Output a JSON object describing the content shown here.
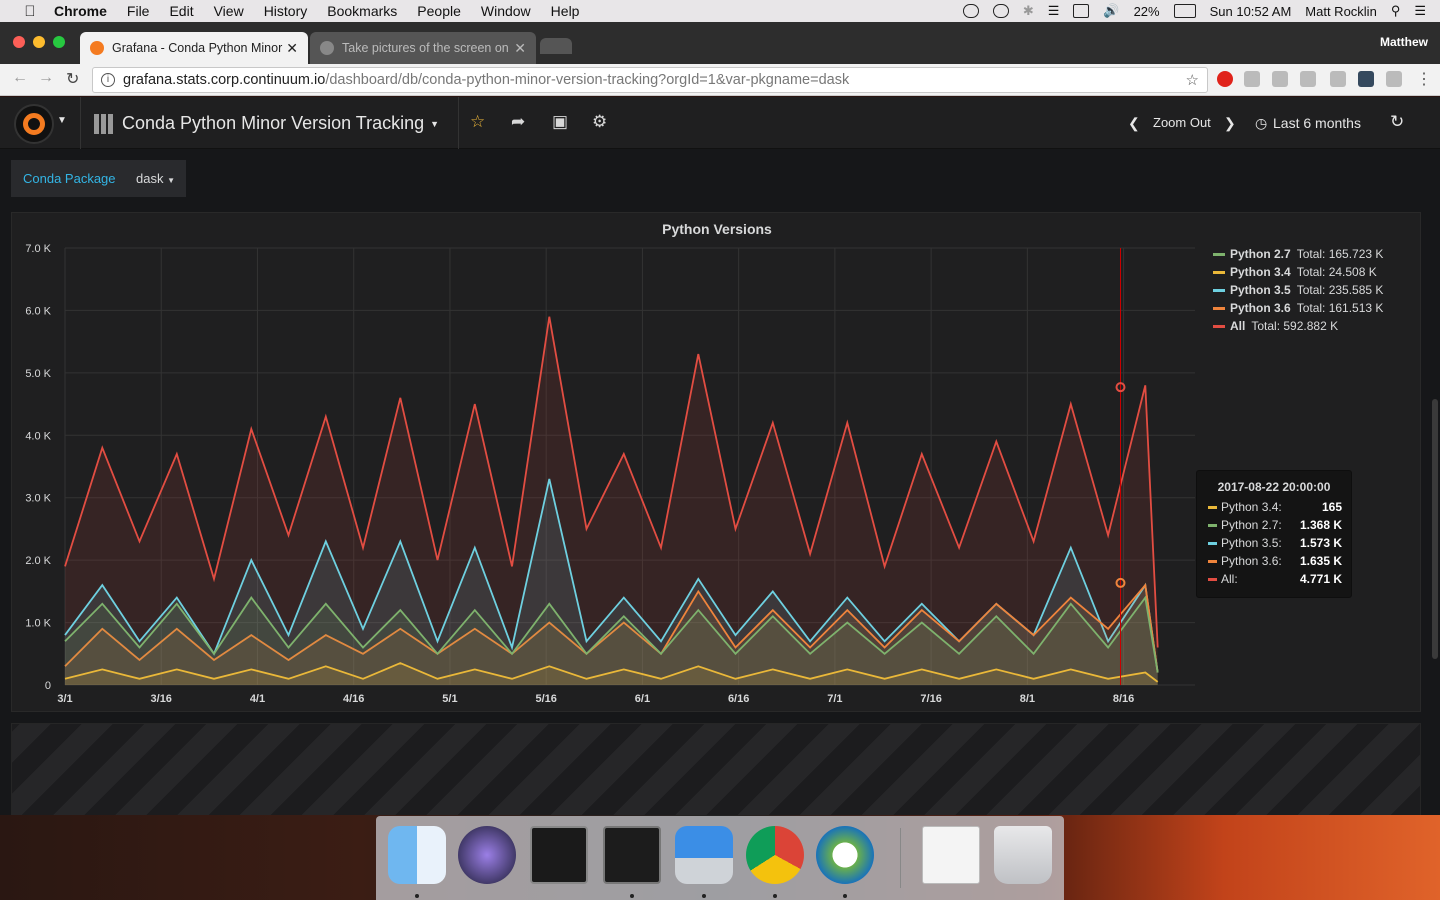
{
  "menubar": {
    "app": "Chrome",
    "items": [
      "File",
      "Edit",
      "View",
      "History",
      "Bookmarks",
      "People",
      "Window",
      "Help"
    ],
    "battery": "22%",
    "clock": "Sun 10:52 AM",
    "user": "Matt Rocklin"
  },
  "browser": {
    "tabs": [
      {
        "title": "Grafana - Conda Python Minor",
        "active": true
      },
      {
        "title": "Take pictures of the screen on",
        "active": false
      }
    ],
    "profile": "Matthew",
    "url_host": "grafana.stats.corp.continuum.io",
    "url_path": "/dashboard/db/conda-python-minor-version-tracking?orgId=1&var-pkgname=dask"
  },
  "grafana": {
    "dashboard_title": "Conda Python Minor Version Tracking",
    "zoom_out": "Zoom Out",
    "time_range": "Last 6 months",
    "variable_label": "Conda Package",
    "variable_value": "dask"
  },
  "panel": {
    "title": "Python Versions",
    "legend": [
      {
        "name": "Python 2.7",
        "total": "Total: 165.723 K",
        "color": "#7eb26d"
      },
      {
        "name": "Python 3.4",
        "total": "Total: 24.508 K",
        "color": "#eab839"
      },
      {
        "name": "Python 3.5",
        "total": "Total: 235.585 K",
        "color": "#6ed0e0"
      },
      {
        "name": "Python 3.6",
        "total": "Total: 161.513 K",
        "color": "#ef843c"
      },
      {
        "name": "All",
        "total": "Total: 592.882 K",
        "color": "#e24d42"
      }
    ],
    "tooltip": {
      "time": "2017-08-22 20:00:00",
      "rows": [
        {
          "name": "Python 3.4:",
          "value": "165",
          "color": "#eab839"
        },
        {
          "name": "Python 2.7:",
          "value": "1.368 K",
          "color": "#7eb26d"
        },
        {
          "name": "Python 3.5:",
          "value": "1.573 K",
          "color": "#6ed0e0"
        },
        {
          "name": "Python 3.6:",
          "value": "1.635 K",
          "color": "#ef843c"
        },
        {
          "name": "All:",
          "value": "4.771 K",
          "color": "#e24d42"
        }
      ]
    }
  },
  "chart_data": {
    "type": "line",
    "title": "Python Versions",
    "yticks": [
      "0",
      "1.0 K",
      "2.0 K",
      "3.0 K",
      "4.0 K",
      "5.0 K",
      "6.0 K",
      "7.0 K"
    ],
    "ylim": [
      0,
      7000
    ],
    "xticks": [
      "3/1",
      "3/16",
      "4/1",
      "4/16",
      "5/1",
      "5/16",
      "6/1",
      "6/16",
      "7/1",
      "7/16",
      "8/1",
      "8/16"
    ],
    "x": [
      0,
      6,
      12,
      18,
      24,
      30,
      36,
      42,
      48,
      54,
      60,
      66,
      72,
      78,
      84,
      90,
      96,
      102,
      108,
      114,
      120,
      126,
      132,
      138,
      144,
      150,
      156,
      162,
      168,
      174,
      176
    ],
    "grid": true,
    "legend_position": "right",
    "series": [
      {
        "name": "All",
        "color": "#e24d42",
        "values": [
          1900,
          3800,
          2300,
          3700,
          1700,
          4100,
          2400,
          4300,
          2200,
          4600,
          2000,
          4500,
          1900,
          5900,
          2500,
          3700,
          2200,
          5300,
          2500,
          4200,
          2100,
          4200,
          1900,
          3700,
          2200,
          3900,
          2300,
          4500,
          2400,
          4800,
          600
        ]
      },
      {
        "name": "Python 3.5",
        "color": "#6ed0e0",
        "values": [
          800,
          1600,
          700,
          1400,
          500,
          2000,
          800,
          2300,
          900,
          2300,
          700,
          2200,
          600,
          3300,
          700,
          1400,
          700,
          1700,
          800,
          1500,
          700,
          1400,
          700,
          1300,
          700,
          1300,
          800,
          2200,
          700,
          1600,
          200
        ]
      },
      {
        "name": "Python 3.6",
        "color": "#ef843c",
        "values": [
          300,
          900,
          400,
          900,
          400,
          800,
          400,
          800,
          500,
          900,
          500,
          900,
          500,
          1000,
          500,
          1000,
          500,
          1500,
          600,
          1200,
          600,
          1200,
          600,
          1200,
          700,
          1300,
          800,
          1400,
          900,
          1600,
          200
        ]
      },
      {
        "name": "Python 2.7",
        "color": "#7eb26d",
        "values": [
          700,
          1300,
          600,
          1300,
          500,
          1400,
          600,
          1300,
          600,
          1200,
          500,
          1200,
          500,
          1300,
          500,
          1100,
          500,
          1200,
          500,
          1100,
          500,
          1000,
          500,
          1000,
          500,
          1100,
          500,
          1300,
          600,
          1400,
          200
        ]
      },
      {
        "name": "Python 3.4",
        "color": "#eab839",
        "values": [
          100,
          250,
          100,
          250,
          100,
          250,
          100,
          300,
          100,
          350,
          100,
          250,
          100,
          300,
          100,
          250,
          100,
          300,
          100,
          250,
          100,
          250,
          100,
          250,
          100,
          250,
          100,
          250,
          100,
          200,
          50
        ]
      }
    ]
  },
  "dock": {
    "apps": [
      "finder-icon",
      "siri-icon",
      "terminal-icon",
      "iterm-icon",
      "keynote-icon",
      "chrome-icon",
      "vpn-icon",
      "preview-icon",
      "trash-icon"
    ]
  }
}
